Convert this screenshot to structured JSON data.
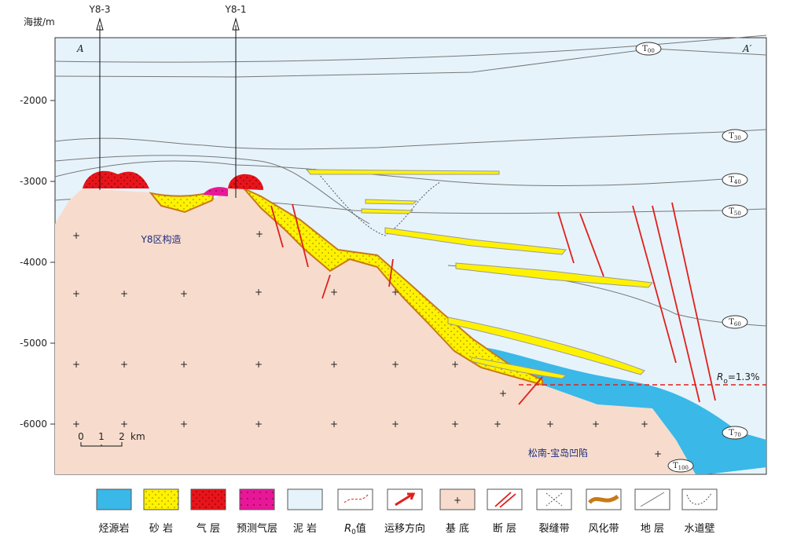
{
  "axis": {
    "title": "海拔/m",
    "ticks": [
      -2000,
      -3000,
      -4000,
      -5000,
      -6000
    ]
  },
  "wells": [
    "Y8-3",
    "Y8-1"
  ],
  "section_ends": [
    "A",
    "A′"
  ],
  "horizons": [
    {
      "base": "T",
      "sub": "00"
    },
    {
      "base": "T",
      "sub": "30"
    },
    {
      "base": "T",
      "sub": "40"
    },
    {
      "base": "T",
      "sub": "50"
    },
    {
      "base": "T",
      "sub": "60"
    },
    {
      "base": "T",
      "sub": "70"
    },
    {
      "base": "T",
      "sub": "100"
    }
  ],
  "labels": {
    "structure": "Y8区构造",
    "depression": "松南-宝岛凹陷",
    "ro": {
      "symbol": "R",
      "sub": "o",
      "text": "=1.3%"
    }
  },
  "scale": {
    "ticks": [
      "0",
      "1",
      "2"
    ],
    "unit": "km"
  },
  "legend": [
    "烃源岩",
    "砂 岩",
    "气 层",
    "预测气层",
    "泥 岩",
    {
      "symbol": "R",
      "sub": "0",
      "text": "值"
    },
    "运移方向",
    "基 底",
    "断 层",
    "裂缝带",
    "风化带",
    "地 层",
    "水道壁"
  ]
}
